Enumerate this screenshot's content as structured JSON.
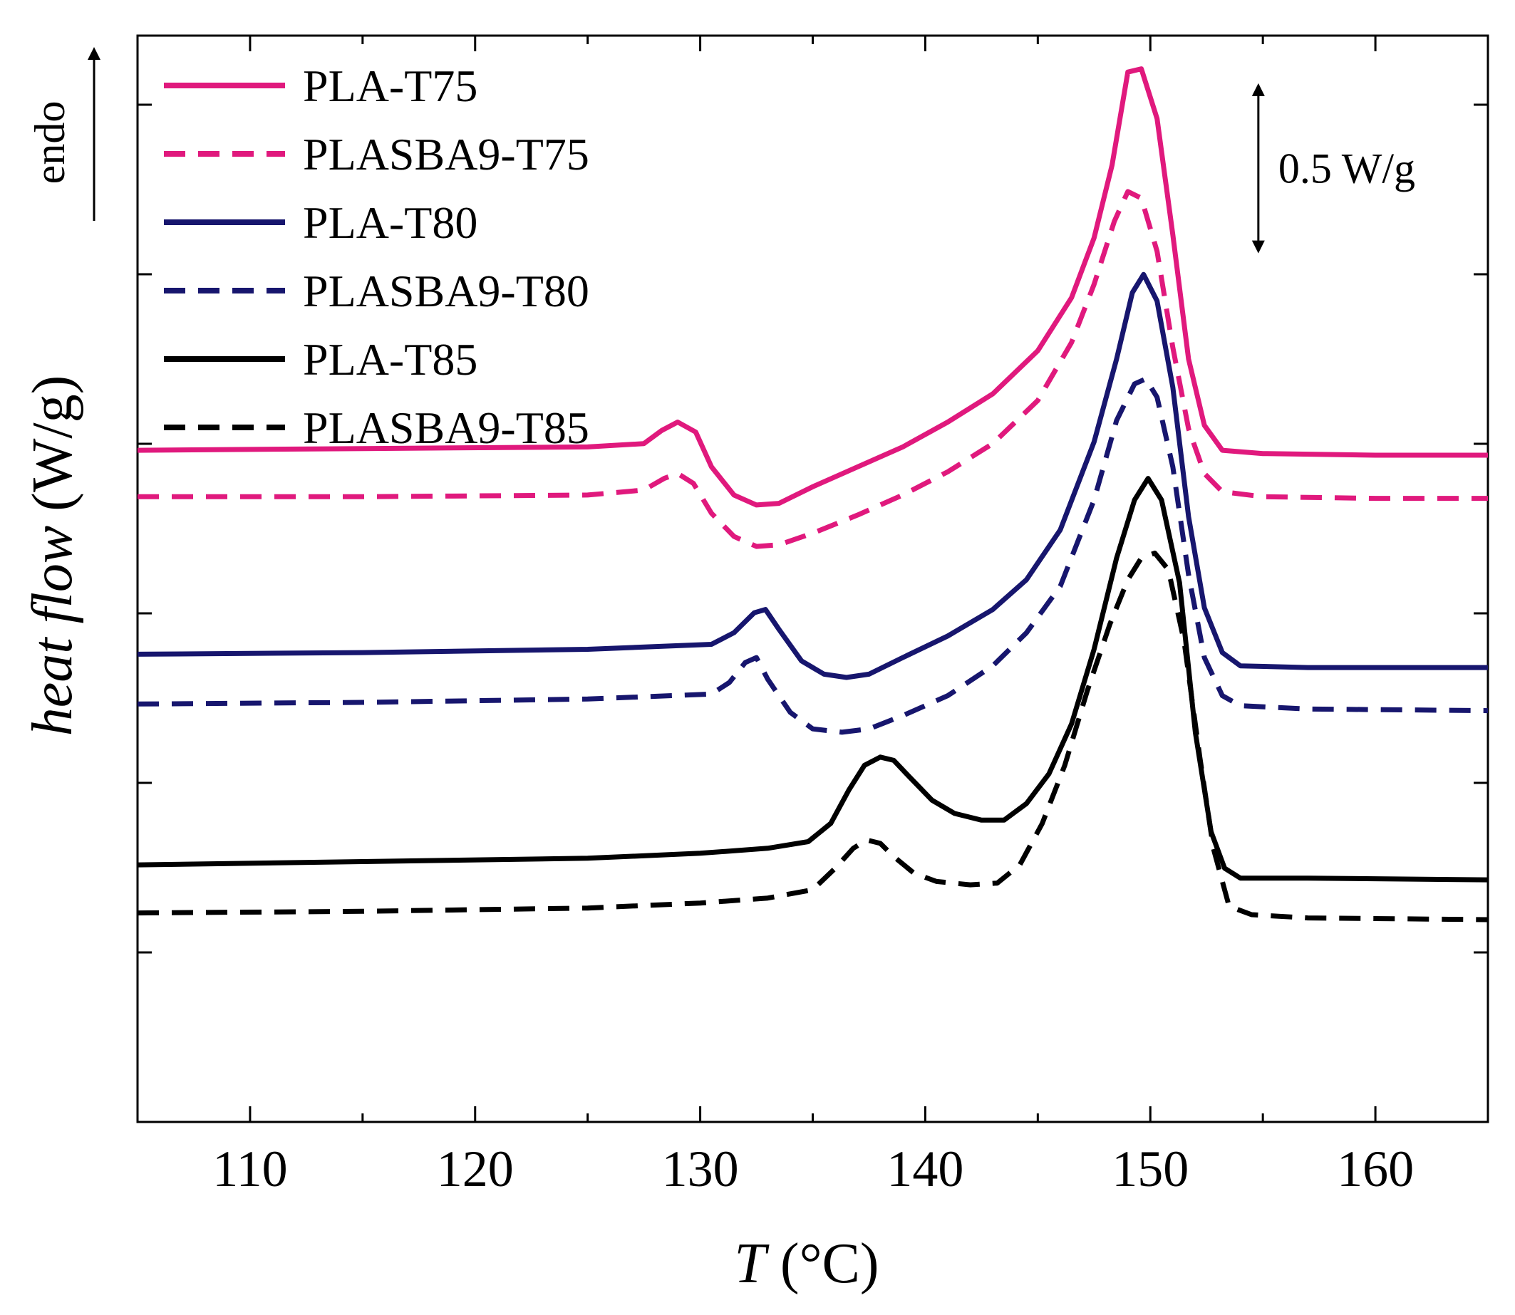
{
  "chart_data": {
    "type": "line",
    "title": "",
    "xlabel": {
      "italic": "T",
      "rest": " (°C)"
    },
    "ylabel": {
      "italic": "heat flow",
      "rest": " (W/g)"
    },
    "xlim": [
      105,
      165
    ],
    "ylim": [
      -2.25,
      4.3
    ],
    "x_ticks": [
      110,
      120,
      130,
      140,
      150,
      160
    ],
    "y_ticks_visible": false,
    "grid": false,
    "legend_position": "top-left",
    "annotations": {
      "scale_bar": {
        "label": "0.5 W/g",
        "x": 154.8,
        "from": 3.0,
        "to": 4.0
      },
      "endo_arrow": {
        "label": "endo",
        "direction": "up"
      }
    },
    "series": [
      {
        "name": "PLA-T75",
        "color": "#e0197d",
        "dash": "solid",
        "points": [
          [
            105,
            1.8
          ],
          [
            115,
            1.81
          ],
          [
            125,
            1.82
          ],
          [
            127.5,
            1.84
          ],
          [
            128.3,
            1.92
          ],
          [
            129,
            1.97
          ],
          [
            129.8,
            1.91
          ],
          [
            130.5,
            1.7
          ],
          [
            131.5,
            1.53
          ],
          [
            132.5,
            1.47
          ],
          [
            133.5,
            1.48
          ],
          [
            135,
            1.58
          ],
          [
            137,
            1.7
          ],
          [
            139,
            1.82
          ],
          [
            141,
            1.97
          ],
          [
            143,
            2.14
          ],
          [
            145,
            2.4
          ],
          [
            146.5,
            2.72
          ],
          [
            147.5,
            3.08
          ],
          [
            148.3,
            3.52
          ],
          [
            149,
            4.08
          ],
          [
            149.6,
            4.1
          ],
          [
            150.3,
            3.8
          ],
          [
            151,
            3.1
          ],
          [
            151.7,
            2.35
          ],
          [
            152.4,
            1.95
          ],
          [
            153.2,
            1.8
          ],
          [
            155,
            1.78
          ],
          [
            160,
            1.77
          ],
          [
            165,
            1.77
          ]
        ]
      },
      {
        "name": "PLASBA9-T75",
        "color": "#e0197d",
        "dash": "dashed",
        "points": [
          [
            105,
            1.52
          ],
          [
            115,
            1.52
          ],
          [
            125,
            1.53
          ],
          [
            127.5,
            1.56
          ],
          [
            128.4,
            1.63
          ],
          [
            129,
            1.66
          ],
          [
            129.7,
            1.6
          ],
          [
            130.5,
            1.42
          ],
          [
            131.5,
            1.28
          ],
          [
            132.5,
            1.22
          ],
          [
            133.5,
            1.23
          ],
          [
            135,
            1.3
          ],
          [
            137,
            1.41
          ],
          [
            139,
            1.53
          ],
          [
            141,
            1.67
          ],
          [
            143,
            1.84
          ],
          [
            145,
            2.1
          ],
          [
            146.5,
            2.45
          ],
          [
            147.5,
            2.8
          ],
          [
            148.4,
            3.18
          ],
          [
            149,
            3.36
          ],
          [
            149.6,
            3.32
          ],
          [
            150.3,
            3.0
          ],
          [
            151,
            2.42
          ],
          [
            151.7,
            1.93
          ],
          [
            152.4,
            1.66
          ],
          [
            153.2,
            1.55
          ],
          [
            155,
            1.52
          ],
          [
            160,
            1.51
          ],
          [
            165,
            1.51
          ]
        ]
      },
      {
        "name": "PLA-T80",
        "color": "#17166e",
        "dash": "solid",
        "points": [
          [
            105,
            0.57
          ],
          [
            115,
            0.58
          ],
          [
            125,
            0.6
          ],
          [
            130.5,
            0.63
          ],
          [
            131.5,
            0.7
          ],
          [
            132.4,
            0.82
          ],
          [
            132.9,
            0.84
          ],
          [
            133.5,
            0.72
          ],
          [
            134.5,
            0.53
          ],
          [
            135.5,
            0.45
          ],
          [
            136.5,
            0.43
          ],
          [
            137.5,
            0.45
          ],
          [
            139,
            0.55
          ],
          [
            141,
            0.68
          ],
          [
            143,
            0.84
          ],
          [
            144.5,
            1.02
          ],
          [
            146,
            1.32
          ],
          [
            147.5,
            1.85
          ],
          [
            148.5,
            2.35
          ],
          [
            149.2,
            2.75
          ],
          [
            149.7,
            2.86
          ],
          [
            150.3,
            2.7
          ],
          [
            151,
            2.18
          ],
          [
            151.7,
            1.4
          ],
          [
            152.4,
            0.85
          ],
          [
            153.2,
            0.58
          ],
          [
            154,
            0.5
          ],
          [
            157,
            0.49
          ],
          [
            165,
            0.49
          ]
        ]
      },
      {
        "name": "PLASBA9-T80",
        "color": "#17166e",
        "dash": "dashed",
        "points": [
          [
            105,
            0.27
          ],
          [
            115,
            0.28
          ],
          [
            125,
            0.3
          ],
          [
            130.5,
            0.33
          ],
          [
            131.3,
            0.4
          ],
          [
            132,
            0.52
          ],
          [
            132.5,
            0.55
          ],
          [
            133,
            0.42
          ],
          [
            134,
            0.22
          ],
          [
            135,
            0.12
          ],
          [
            136.3,
            0.1
          ],
          [
            137.5,
            0.12
          ],
          [
            139,
            0.2
          ],
          [
            141,
            0.32
          ],
          [
            143,
            0.5
          ],
          [
            144.5,
            0.7
          ],
          [
            146,
            0.98
          ],
          [
            147.5,
            1.5
          ],
          [
            148.5,
            1.98
          ],
          [
            149.3,
            2.2
          ],
          [
            149.8,
            2.23
          ],
          [
            150.3,
            2.12
          ],
          [
            151,
            1.7
          ],
          [
            151.7,
            1.05
          ],
          [
            152.4,
            0.55
          ],
          [
            153.2,
            0.32
          ],
          [
            154,
            0.26
          ],
          [
            157,
            0.24
          ],
          [
            165,
            0.23
          ]
        ]
      },
      {
        "name": "PLA-T85",
        "color": "#000000",
        "dash": "solid",
        "points": [
          [
            105,
            -0.7
          ],
          [
            115,
            -0.68
          ],
          [
            125,
            -0.66
          ],
          [
            130,
            -0.63
          ],
          [
            133,
            -0.6
          ],
          [
            134.8,
            -0.56
          ],
          [
            135.8,
            -0.45
          ],
          [
            136.6,
            -0.25
          ],
          [
            137.3,
            -0.1
          ],
          [
            138,
            -0.05
          ],
          [
            138.6,
            -0.07
          ],
          [
            139.3,
            -0.17
          ],
          [
            140.3,
            -0.31
          ],
          [
            141.3,
            -0.39
          ],
          [
            142.5,
            -0.43
          ],
          [
            143.5,
            -0.43
          ],
          [
            144.5,
            -0.33
          ],
          [
            145.5,
            -0.15
          ],
          [
            146.5,
            0.15
          ],
          [
            147.5,
            0.6
          ],
          [
            148.5,
            1.15
          ],
          [
            149.3,
            1.5
          ],
          [
            149.9,
            1.63
          ],
          [
            150.5,
            1.5
          ],
          [
            151.3,
            1.0
          ],
          [
            152,
            0.1
          ],
          [
            152.7,
            -0.5
          ],
          [
            153.3,
            -0.72
          ],
          [
            154,
            -0.78
          ],
          [
            157,
            -0.78
          ],
          [
            165,
            -0.79
          ]
        ]
      },
      {
        "name": "PLASBA9-T85",
        "color": "#000000",
        "dash": "dashed",
        "points": [
          [
            105,
            -0.99
          ],
          [
            115,
            -0.98
          ],
          [
            125,
            -0.96
          ],
          [
            130,
            -0.93
          ],
          [
            133,
            -0.9
          ],
          [
            135,
            -0.85
          ],
          [
            136,
            -0.72
          ],
          [
            136.8,
            -0.6
          ],
          [
            137.4,
            -0.55
          ],
          [
            138,
            -0.57
          ],
          [
            138.6,
            -0.65
          ],
          [
            139.5,
            -0.75
          ],
          [
            140.5,
            -0.8
          ],
          [
            142,
            -0.82
          ],
          [
            143.2,
            -0.81
          ],
          [
            144.2,
            -0.7
          ],
          [
            145.2,
            -0.45
          ],
          [
            146.2,
            -0.1
          ],
          [
            147.2,
            0.35
          ],
          [
            148.2,
            0.75
          ],
          [
            149,
            1.02
          ],
          [
            149.6,
            1.15
          ],
          [
            150.2,
            1.18
          ],
          [
            150.8,
            1.08
          ],
          [
            151.5,
            0.65
          ],
          [
            152.2,
            -0.05
          ],
          [
            152.8,
            -0.6
          ],
          [
            153.5,
            -0.95
          ],
          [
            154.5,
            -1.0
          ],
          [
            157,
            -1.02
          ],
          [
            165,
            -1.03
          ]
        ]
      }
    ]
  }
}
